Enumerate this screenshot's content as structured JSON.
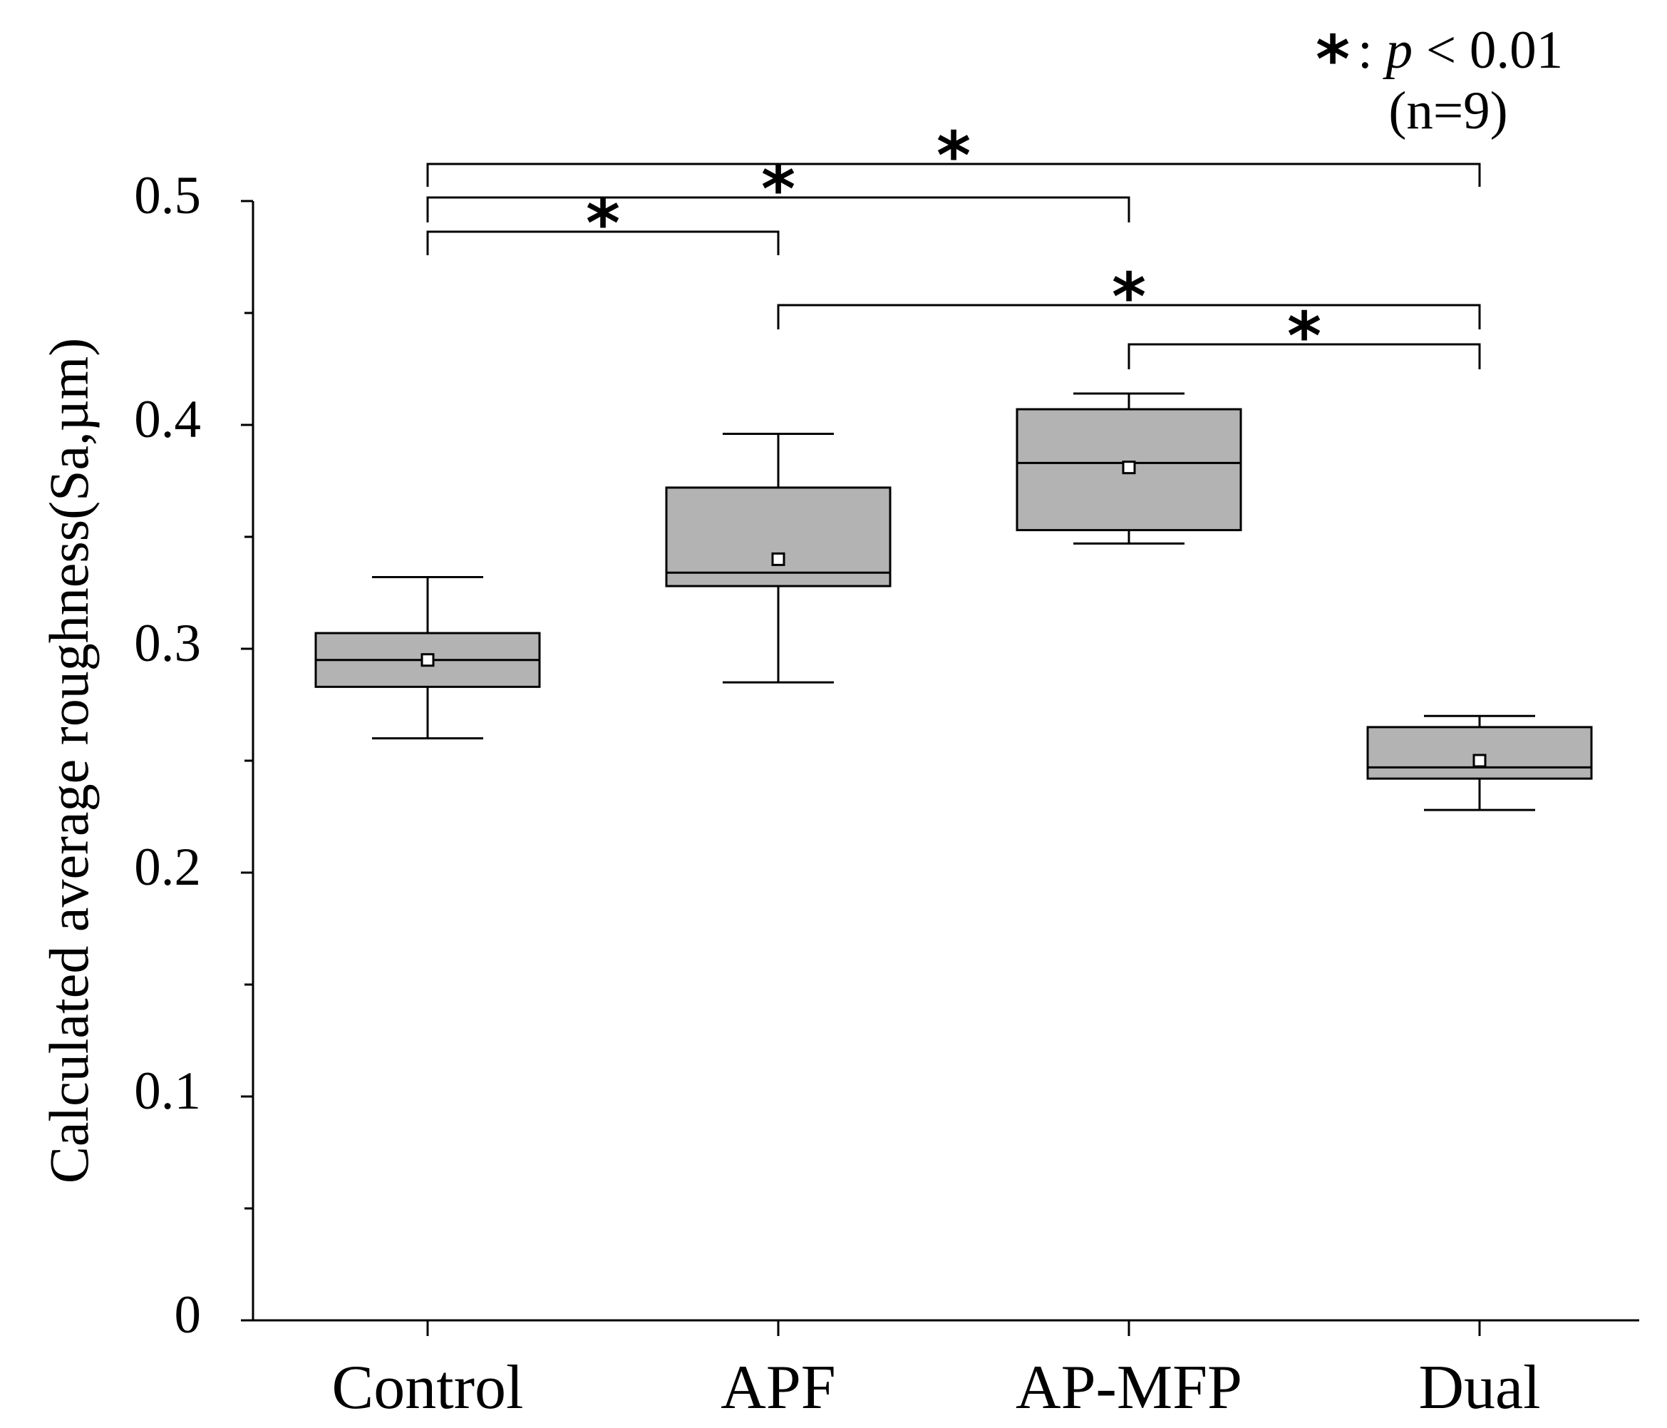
{
  "chart_data": {
    "type": "box",
    "title": "",
    "xlabel": "",
    "ylabel": "Calculated average roughness(Sa,µm)",
    "ylim": [
      0,
      0.5
    ],
    "yticks": [
      "0",
      "0.1",
      "0.2",
      "0.3",
      "0.4",
      "0.5"
    ],
    "ytick_values": [
      0,
      0.1,
      0.2,
      0.3,
      0.4,
      0.5
    ],
    "categories": [
      "Control",
      "APF",
      "AP-MFP",
      "Dual"
    ],
    "series": [
      {
        "name": "Control",
        "whisker_low": 0.26,
        "q1": 0.283,
        "median": 0.295,
        "q3": 0.307,
        "whisker_high": 0.332,
        "mean": 0.295
      },
      {
        "name": "APF",
        "whisker_low": 0.285,
        "q1": 0.328,
        "median": 0.334,
        "q3": 0.372,
        "whisker_high": 0.396,
        "mean": 0.34
      },
      {
        "name": "AP-MFP",
        "whisker_low": 0.347,
        "q1": 0.353,
        "median": 0.383,
        "q3": 0.407,
        "whisker_high": 0.414,
        "mean": 0.381
      },
      {
        "name": "Dual",
        "whisker_low": 0.228,
        "q1": 0.242,
        "median": 0.247,
        "q3": 0.265,
        "whisker_high": 0.27,
        "mean": 0.25
      }
    ],
    "box_color": "#b3b3b3",
    "significance": [
      {
        "from": "Control",
        "to": "APF",
        "label": "*"
      },
      {
        "from": "Control",
        "to": "AP-MFP",
        "label": "*"
      },
      {
        "from": "Control",
        "to": "Dual",
        "label": "*"
      },
      {
        "from": "APF",
        "to": "Dual",
        "label": "*"
      },
      {
        "from": "AP-MFP",
        "to": "Dual",
        "label": "*"
      }
    ],
    "legend": {
      "symbol": "*",
      "text_prefix": ": ",
      "p_symbol": "p",
      "text_suffix": " < 0.01",
      "n_text": "(n=9)"
    }
  }
}
